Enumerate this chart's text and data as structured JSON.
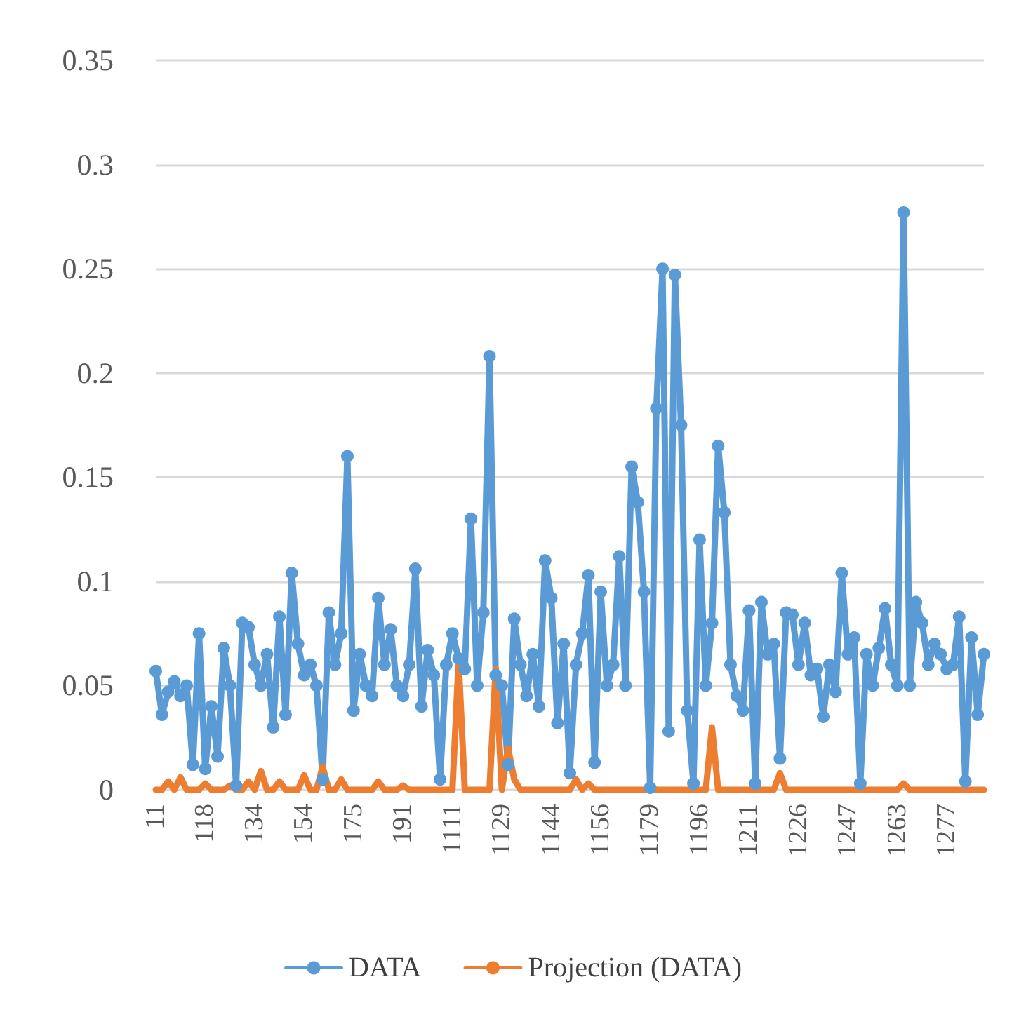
{
  "chart_data": {
    "type": "line",
    "categories": [
      "11",
      null,
      null,
      null,
      null,
      null,
      null,
      null,
      "118",
      null,
      null,
      null,
      null,
      null,
      null,
      null,
      "134",
      null,
      null,
      null,
      null,
      null,
      null,
      null,
      "154",
      null,
      null,
      null,
      null,
      null,
      null,
      null,
      "175",
      null,
      null,
      null,
      null,
      null,
      null,
      null,
      "191",
      null,
      null,
      null,
      null,
      null,
      null,
      null,
      "1111",
      null,
      null,
      null,
      null,
      null,
      null,
      null,
      "1129",
      null,
      null,
      null,
      null,
      null,
      null,
      null,
      "1144",
      null,
      null,
      null,
      null,
      null,
      null,
      null,
      "1156",
      null,
      null,
      null,
      null,
      null,
      null,
      null,
      "1179",
      null,
      null,
      null,
      null,
      null,
      null,
      null,
      "1196",
      null,
      null,
      null,
      null,
      null,
      null,
      null,
      "1211",
      null,
      null,
      null,
      null,
      null,
      null,
      null,
      "1226",
      null,
      null,
      null,
      null,
      null,
      null,
      null,
      "1247",
      null,
      null,
      null,
      null,
      null,
      null,
      null,
      "1263",
      null,
      null,
      null,
      null,
      null,
      null,
      null,
      "1277",
      null,
      null,
      null,
      null,
      null,
      null
    ],
    "series": [
      {
        "name": "DATA",
        "color": "#5b9bd5",
        "marker": "circle",
        "values": [
          0.057,
          0.036,
          0.047,
          0.052,
          0.045,
          0.05,
          0.012,
          0.075,
          0.01,
          0.04,
          0.016,
          0.068,
          0.05,
          0.002,
          0.08,
          0.078,
          0.06,
          0.05,
          0.065,
          0.03,
          0.083,
          0.036,
          0.104,
          0.07,
          0.055,
          0.06,
          0.05,
          0.005,
          0.085,
          0.06,
          0.075,
          0.16,
          0.038,
          0.065,
          0.05,
          0.045,
          0.092,
          0.06,
          0.077,
          0.05,
          0.045,
          0.06,
          0.106,
          0.04,
          0.067,
          0.055,
          0.005,
          0.06,
          0.075,
          0.063,
          0.058,
          0.13,
          0.05,
          0.085,
          0.208,
          0.055,
          0.05,
          0.012,
          0.082,
          0.06,
          0.045,
          0.065,
          0.04,
          0.11,
          0.092,
          0.032,
          0.07,
          0.008,
          0.06,
          0.075,
          0.103,
          0.013,
          0.095,
          0.05,
          0.06,
          0.112,
          0.05,
          0.155,
          0.138,
          0.095,
          0.001,
          0.183,
          0.25,
          0.028,
          0.247,
          0.175,
          0.038,
          0.003,
          0.12,
          0.05,
          0.08,
          0.165,
          0.133,
          0.06,
          0.045,
          0.038,
          0.086,
          0.003,
          0.09,
          0.065,
          0.07,
          0.015,
          0.085,
          0.084,
          0.06,
          0.08,
          0.055,
          0.058,
          0.035,
          0.06,
          0.047,
          0.104,
          0.065,
          0.073,
          0.003,
          0.065,
          0.05,
          0.068,
          0.087,
          0.06,
          0.05,
          0.277,
          0.05,
          0.09,
          0.08,
          0.06,
          0.07,
          0.065,
          0.058,
          0.06,
          0.083,
          0.004,
          0.073,
          0.036,
          0.065
        ]
      },
      {
        "name": "Projection (DATA)",
        "color": "#ed7d31",
        "marker": "none",
        "values": [
          0,
          0,
          0.004,
          0,
          0.006,
          0,
          0,
          0,
          0.003,
          0,
          0,
          0,
          0.002,
          0,
          0,
          0.004,
          0,
          0.009,
          0,
          0,
          0.004,
          0,
          0,
          0,
          0.007,
          0,
          0,
          0.011,
          0,
          0,
          0.005,
          0,
          0,
          0,
          0,
          0,
          0.004,
          0,
          0,
          0,
          0.002,
          0,
          0,
          0,
          0,
          0,
          0,
          0,
          0,
          0.062,
          0,
          0,
          0,
          0,
          0,
          0.058,
          0,
          0.02,
          0.005,
          0,
          0,
          0,
          0,
          0,
          0,
          0,
          0,
          0,
          0.005,
          0,
          0.003,
          0,
          0,
          0,
          0,
          0,
          0,
          0,
          0,
          0,
          0.001,
          0,
          0,
          0,
          0,
          0,
          0,
          0,
          0,
          0,
          0.03,
          0,
          0,
          0,
          0,
          0,
          0,
          0,
          0,
          0,
          0,
          0.008,
          0,
          0,
          0,
          0,
          0,
          0,
          0,
          0,
          0,
          0,
          0,
          0,
          0,
          0,
          0,
          0,
          0,
          0,
          0,
          0.003,
          0,
          0,
          0,
          0,
          0,
          0,
          0,
          0,
          0,
          0,
          0,
          0,
          0
        ]
      }
    ],
    "ylim": [
      0,
      0.35
    ],
    "yticks": [
      0,
      0.05,
      0.1,
      0.15,
      0.2,
      0.25,
      0.3,
      0.35
    ],
    "grid": "y",
    "legend": "bottom",
    "line_style": "solid"
  }
}
